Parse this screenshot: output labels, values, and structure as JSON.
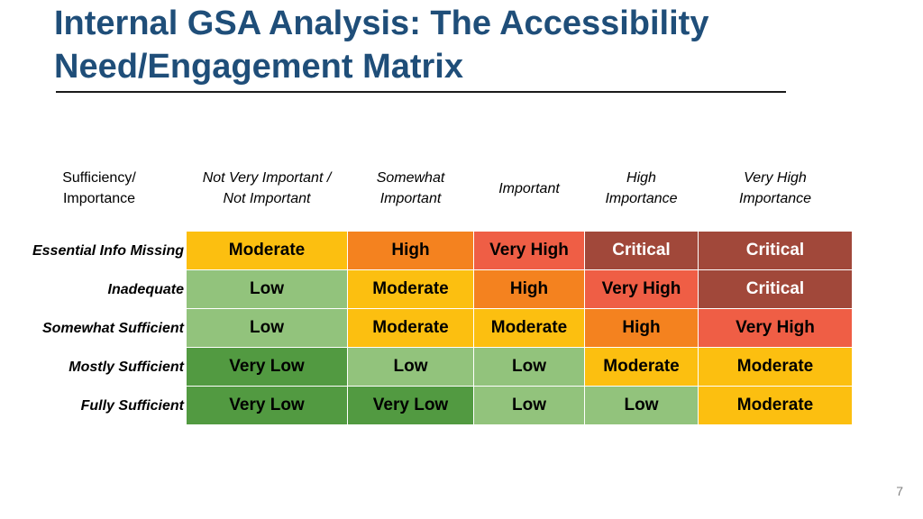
{
  "slide": {
    "title_line1": "Internal GSA Analysis: The Accessibility",
    "title_line2": "Need/Engagement Matrix",
    "page_number": "7"
  },
  "matrix": {
    "corner_header": [
      "Sufficiency/",
      "Importance"
    ],
    "columns": [
      {
        "lines": [
          "Not Very Important /",
          "Not Important"
        ]
      },
      {
        "lines": [
          "Somewhat",
          "Important"
        ]
      },
      {
        "lines": [
          "Important"
        ]
      },
      {
        "lines": [
          "High",
          "Importance"
        ]
      },
      {
        "lines": [
          "Very High",
          "Importance"
        ]
      }
    ],
    "rows": [
      {
        "label": "Essential Info Missing",
        "cells": [
          "Moderate",
          "High",
          "Very High",
          "Critical",
          "Critical"
        ]
      },
      {
        "label": "Inadequate",
        "cells": [
          "Low",
          "Moderate",
          "High",
          "Very High",
          "Critical"
        ]
      },
      {
        "label": "Somewhat Sufficient",
        "cells": [
          "Low",
          "Moderate",
          "Moderate",
          "High",
          "Very High"
        ]
      },
      {
        "label": "Mostly Sufficient",
        "cells": [
          "Very Low",
          "Low",
          "Low",
          "Moderate",
          "Moderate"
        ]
      },
      {
        "label": "Fully Sufficient",
        "cells": [
          "Very Low",
          "Very Low",
          "Low",
          "Low",
          "Moderate"
        ]
      }
    ],
    "level_colors": {
      "Critical": "#a1483a",
      "Very High": "#ef5e45",
      "High": "#f4821f",
      "Moderate": "#fcbf10",
      "Low": "#92c37c",
      "Very Low": "#529a41"
    }
  }
}
